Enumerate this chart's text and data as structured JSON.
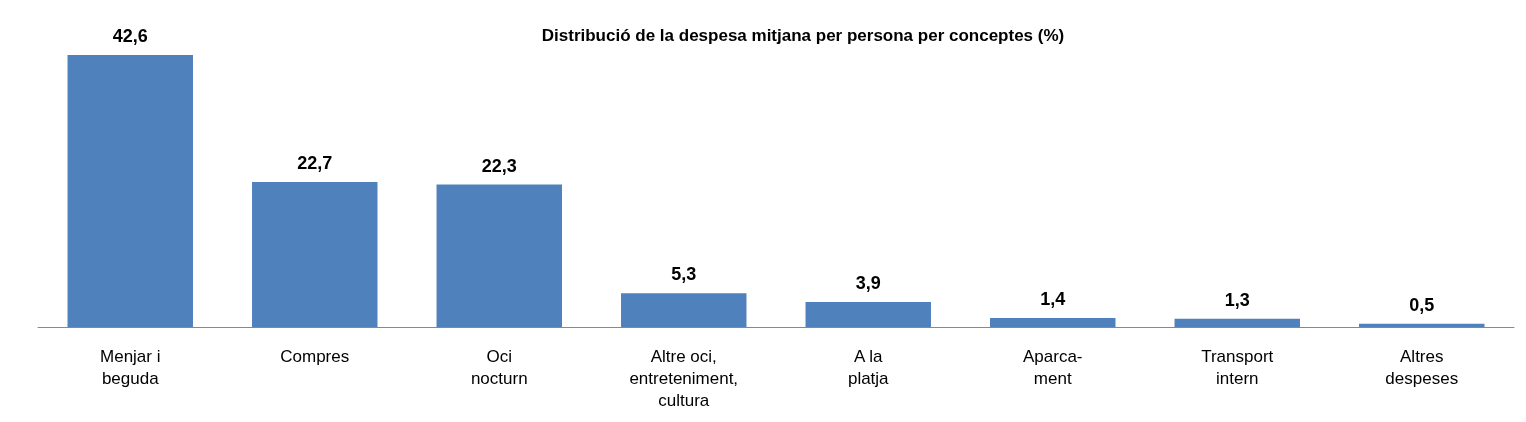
{
  "chart_data": {
    "type": "bar",
    "title": "Distribució de la despesa mitjana per persona per conceptes (%)",
    "categories": [
      "Menjar i\nbeguda",
      "Compres",
      "Oci\nnocturn",
      "Altre oci,\nentreteniment,\ncultura",
      "A la\nplatja",
      "Aparca-\nment",
      "Transport\nintern",
      "Altres\ndespeses"
    ],
    "values": [
      42.6,
      22.7,
      22.3,
      5.3,
      3.9,
      1.4,
      1.3,
      0.5
    ],
    "value_labels": [
      "42,6",
      "22,7",
      "22,3",
      "5,3",
      "3,9",
      "1,4",
      "1,3",
      "0,5"
    ],
    "color": "#4f81bd"
  }
}
